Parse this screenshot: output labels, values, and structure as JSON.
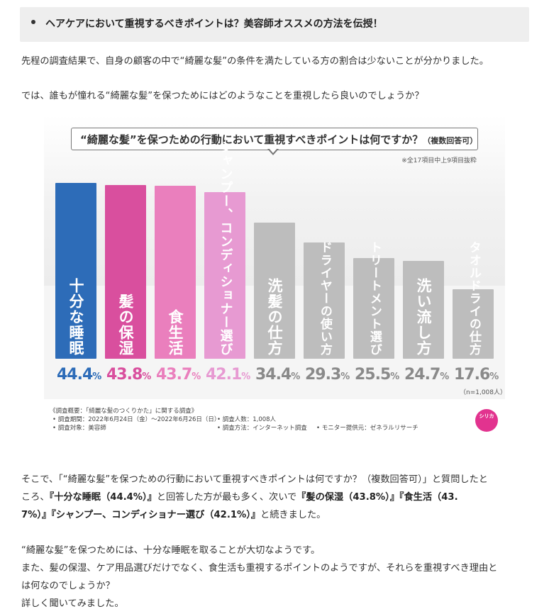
{
  "heading": "ヘアケアにおいて重視するべきポイントは？美容師オススメの方法を伝授！",
  "intro": [
    "先程の調査結果で、自身の顧客の中で“綺麗な髪”の条件を満たしている方の割合は少ないことが分かりました。",
    "では、誰もが憧れる“綺麗な髪”を保つためにはどのようなことを重視したら良いのでしょうか？"
  ],
  "figure": {
    "title": "“綺麗な髪”を保つための行動において重視すべきポイントは何ですか？",
    "title_sub": "（複数回答可）",
    "note": "※全17項目中上9項目抜粋",
    "n_label": "（n=1,008人）",
    "footnotes": {
      "overview": "《調査概要：「綺麗な髪のつくりかた」に関する調査》",
      "period": "• 調査期間：2022年6月24日（金）～2022年6月26日（日）",
      "target": "• 調査対象：美容師",
      "count": "• 調査人数：1,008人",
      "method": "• 調査方法：インターネット調査",
      "provider": "• モニター提供元：ゼネラルリサーチ"
    },
    "logo_text": "シリカ"
  },
  "chart_data": {
    "type": "bar",
    "title": "“綺麗な髪”を保つための行動において重視すべきポイントは何ですか？（複数回答可）",
    "categories": [
      "十分な睡眠",
      "髪の保湿",
      "食生活",
      "シャンプー、コンディショナー選び",
      "洗髪の仕方",
      "ドライヤーの使い方",
      "トリートメント選び",
      "洗い流し方",
      "タオルドライの仕方"
    ],
    "values": [
      44.4,
      43.8,
      43.7,
      42.1,
      34.4,
      29.3,
      25.5,
      24.7,
      17.6
    ],
    "value_labels": [
      "44.4",
      "43.8",
      "43.7",
      "42.1",
      "34.4",
      "29.3",
      "25.5",
      "24.7",
      "17.6"
    ],
    "unit": "%",
    "colors": [
      "#2d6cb8",
      "#d94f9e",
      "#ea7fbd",
      "#e79ad2",
      "#bdbdbd",
      "#bdbdbd",
      "#bdbdbd",
      "#bdbdbd",
      "#bdbdbd"
    ],
    "pct_colors": [
      "#2d6cb8",
      "#d94f9e",
      "#ea7fbd",
      "#e79ad2",
      "#8a8a8a",
      "#8a8a8a",
      "#8a8a8a",
      "#8a8a8a",
      "#8a8a8a"
    ],
    "ylim": [
      0,
      44.4
    ],
    "grid": false,
    "legend": "none"
  },
  "body": {
    "p1_a": "そこで、「“綺麗な髪”を保つための行動において重視すべきポイントは何ですか？（複数回答可）」と質問したと",
    "p1_b_pre": "ころ、",
    "p1_b_bold1": "『十分な睡眠（44.4%）』",
    "p1_b_mid": "と回答した方が最も多く、次いで",
    "p1_b_bold2": "『髪の保湿（43.8%）』『食生活（43.",
    "p1_c_bold": "7%）』『シャンプー、コンディショナー選び（42.1%）』",
    "p1_c_post": "と続きました。",
    "p2": "“綺麗な髪”を保つためには、十分な睡眠を取ることが大切なようです。",
    "p3": "また、髪の保湿、ケア用品選びだけでなく、食生活も重視するポイントのようですが、それらを重視すべき理由と",
    "p4": "は何なのでしょうか？",
    "p5": "詳しく聞いてみました。"
  }
}
